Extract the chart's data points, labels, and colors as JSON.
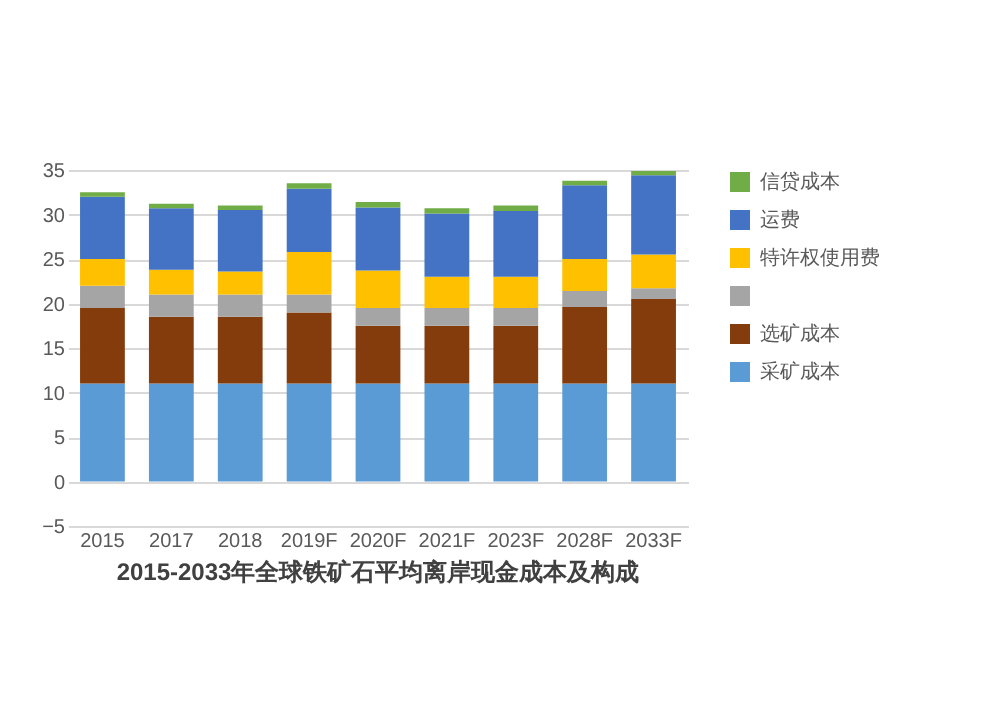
{
  "chart_data": {
    "type": "bar",
    "stacked": true,
    "title": "2015-2033年全球铁矿石平均离岸现金成本及构成",
    "categories": [
      "2015",
      "2017",
      "2018",
      "2019F",
      "2020F",
      "2021F",
      "2023F",
      "2028F",
      "2033F"
    ],
    "series": [
      {
        "name": "采矿成本",
        "color": "#5b9bd5",
        "values": [
          11,
          11,
          11,
          11,
          11,
          11,
          11,
          11,
          11
        ]
      },
      {
        "name": "选矿成本",
        "color": "#843c0c",
        "values": [
          8.5,
          7.5,
          7.5,
          8,
          6.5,
          6.5,
          6.5,
          8.6,
          9.5
        ]
      },
      {
        "color": "#a5a5a5",
        "values": [
          2.5,
          2.5,
          2.5,
          2,
          2,
          2,
          2,
          1.8,
          1.2
        ]
      },
      {
        "name": "特许权使用费",
        "color": "#ffc000",
        "values": [
          3,
          2.8,
          2.6,
          4.8,
          4.2,
          3.5,
          3.5,
          3.6,
          3.8
        ]
      },
      {
        "name": "运费",
        "color": "#4472c4",
        "values": [
          7,
          6.9,
          6.9,
          7.1,
          7.1,
          7.1,
          7.4,
          8.3,
          8.9
        ]
      },
      {
        "name": "信贷成本",
        "color": "#70ad47",
        "values": [
          0.5,
          0.5,
          0.5,
          0.6,
          0.6,
          0.6,
          0.6,
          0.5,
          0.5
        ]
      }
    ],
    "ylim": [
      -5,
      35
    ],
    "yticks": [
      -5,
      0,
      5,
      10,
      15,
      20,
      25,
      30,
      35
    ],
    "grid": "y",
    "legend": "right"
  }
}
